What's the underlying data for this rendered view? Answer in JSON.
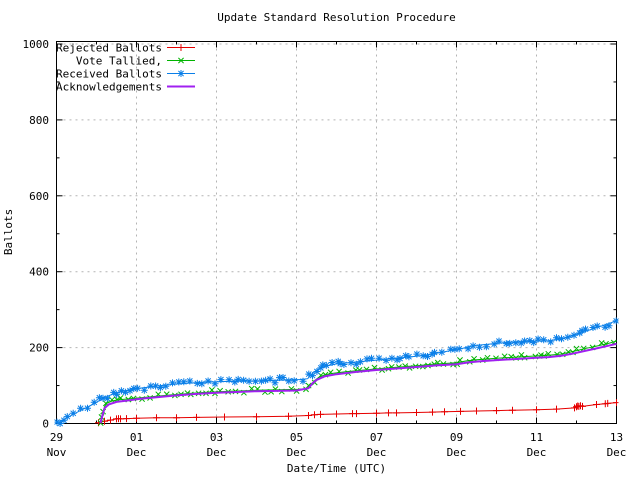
{
  "chart_data": {
    "type": "line",
    "title": "Update Standard Resolution Procedure",
    "xlabel": "Date/Time (UTC)",
    "ylabel": "Ballots",
    "x_unit": "days since 29 Nov 00:00 UTC",
    "xlim": [
      0,
      14
    ],
    "ylim": [
      0,
      1000
    ],
    "y_tick_step": 200,
    "y_minor_step": 100,
    "x_minor_step": 1,
    "grid": true,
    "grid_color": "#b4b4b4",
    "legend_position": "top-left",
    "x_ticks": [
      {
        "pos": 0,
        "label": "29",
        "sub": "Nov"
      },
      {
        "pos": 2,
        "label": "01",
        "sub": "Dec"
      },
      {
        "pos": 4,
        "label": "03",
        "sub": "Dec"
      },
      {
        "pos": 6,
        "label": "05",
        "sub": "Dec"
      },
      {
        "pos": 8,
        "label": "07",
        "sub": "Dec"
      },
      {
        "pos": 10,
        "label": "09",
        "sub": "Dec"
      },
      {
        "pos": 12,
        "label": "11",
        "sub": "Dec"
      },
      {
        "pos": 14,
        "label": "13",
        "sub": "Dec"
      }
    ],
    "series": [
      {
        "name": "Rejected Ballots",
        "color": "#e60000",
        "marker": "plus",
        "marker_mode": "points",
        "line_width": 1,
        "points": [
          [
            1.05,
            2
          ],
          [
            1.2,
            6
          ],
          [
            1.35,
            9
          ],
          [
            1.5,
            12
          ],
          [
            1.55,
            13
          ],
          [
            1.6,
            12
          ],
          [
            1.75,
            13
          ],
          [
            2.0,
            14
          ],
          [
            2.5,
            15
          ],
          [
            3.0,
            15
          ],
          [
            3.5,
            16
          ],
          [
            4.2,
            17
          ],
          [
            5.0,
            18
          ],
          [
            5.8,
            19
          ],
          [
            6.3,
            21
          ],
          [
            6.45,
            23
          ],
          [
            6.6,
            24
          ],
          [
            7.0,
            25
          ],
          [
            7.4,
            26
          ],
          [
            7.5,
            26
          ],
          [
            8.0,
            27
          ],
          [
            8.3,
            28
          ],
          [
            8.5,
            28
          ],
          [
            9.0,
            29
          ],
          [
            9.4,
            30
          ],
          [
            9.7,
            31
          ],
          [
            10.1,
            32
          ],
          [
            10.5,
            33
          ],
          [
            11.0,
            34
          ],
          [
            11.4,
            35
          ],
          [
            12.0,
            36
          ],
          [
            12.5,
            38
          ],
          [
            12.95,
            41
          ],
          [
            13.0,
            44
          ],
          [
            13.03,
            46
          ],
          [
            13.06,
            45
          ],
          [
            13.1,
            47
          ],
          [
            13.15,
            45
          ],
          [
            13.5,
            50
          ],
          [
            13.72,
            52
          ],
          [
            13.78,
            53
          ],
          [
            14.0,
            55
          ]
        ]
      },
      {
        "name": "Vote Tallied,",
        "color": "#00b400",
        "marker": "cross",
        "marker_mode": "dense",
        "line_width": 1,
        "points": [
          [
            1.08,
            1
          ],
          [
            1.12,
            14
          ],
          [
            1.16,
            30
          ],
          [
            1.2,
            44
          ],
          [
            1.25,
            53
          ],
          [
            1.35,
            58
          ],
          [
            1.5,
            62
          ],
          [
            1.7,
            64
          ],
          [
            1.9,
            66
          ],
          [
            2.1,
            68
          ],
          [
            2.5,
            72
          ],
          [
            2.9,
            76
          ],
          [
            3.3,
            79
          ],
          [
            3.7,
            82
          ],
          [
            4.1,
            84
          ],
          [
            4.6,
            86
          ],
          [
            5.1,
            88
          ],
          [
            5.6,
            89
          ],
          [
            6.05,
            90
          ],
          [
            6.28,
            92
          ],
          [
            6.35,
            102
          ],
          [
            6.45,
            113
          ],
          [
            6.55,
            121
          ],
          [
            6.7,
            128
          ],
          [
            6.9,
            132
          ],
          [
            7.2,
            136
          ],
          [
            7.6,
            140
          ],
          [
            8.0,
            144
          ],
          [
            8.5,
            148
          ],
          [
            9.0,
            152
          ],
          [
            9.4,
            156
          ],
          [
            9.7,
            158
          ],
          [
            10.0,
            160
          ],
          [
            10.25,
            165
          ],
          [
            10.5,
            168
          ],
          [
            11.0,
            172
          ],
          [
            11.5,
            175
          ],
          [
            12.0,
            178
          ],
          [
            12.3,
            180
          ],
          [
            12.6,
            183
          ],
          [
            12.8,
            187
          ],
          [
            13.0,
            192
          ],
          [
            13.2,
            197
          ],
          [
            13.5,
            204
          ],
          [
            13.8,
            211
          ],
          [
            14.0,
            217
          ]
        ]
      },
      {
        "name": "Received Ballots",
        "color": "#0a7fe8",
        "marker": "star",
        "marker_mode": "dense",
        "line_width": 1,
        "points": [
          [
            0,
            1
          ],
          [
            0.15,
            8
          ],
          [
            0.3,
            17
          ],
          [
            0.45,
            26
          ],
          [
            0.6,
            34
          ],
          [
            0.75,
            42
          ],
          [
            0.9,
            50
          ],
          [
            1.0,
            56
          ],
          [
            1.1,
            62
          ],
          [
            1.2,
            68
          ],
          [
            1.3,
            73
          ],
          [
            1.45,
            79
          ],
          [
            1.6,
            84
          ],
          [
            1.8,
            88
          ],
          [
            2.0,
            92
          ],
          [
            2.3,
            96
          ],
          [
            2.6,
            100
          ],
          [
            3.0,
            104
          ],
          [
            3.4,
            107
          ],
          [
            3.8,
            109
          ],
          [
            4.3,
            111
          ],
          [
            4.8,
            112
          ],
          [
            5.3,
            113
          ],
          [
            5.8,
            115
          ],
          [
            6.1,
            116
          ],
          [
            6.28,
            118
          ],
          [
            6.35,
            127
          ],
          [
            6.45,
            136
          ],
          [
            6.55,
            143
          ],
          [
            6.7,
            150
          ],
          [
            6.85,
            154
          ],
          [
            7.0,
            157
          ],
          [
            7.3,
            160
          ],
          [
            7.7,
            164
          ],
          [
            8.0,
            167
          ],
          [
            8.4,
            171
          ],
          [
            8.8,
            175
          ],
          [
            9.2,
            180
          ],
          [
            9.5,
            185
          ],
          [
            9.8,
            191
          ],
          [
            10.0,
            196
          ],
          [
            10.15,
            198
          ],
          [
            10.3,
            202
          ],
          [
            10.5,
            206
          ],
          [
            10.7,
            208
          ],
          [
            11.0,
            211
          ],
          [
            11.3,
            214
          ],
          [
            11.7,
            216
          ],
          [
            12.0,
            217
          ],
          [
            12.3,
            218
          ],
          [
            12.55,
            221
          ],
          [
            12.8,
            228
          ],
          [
            13.0,
            235
          ],
          [
            13.2,
            242
          ],
          [
            13.4,
            249
          ],
          [
            13.6,
            256
          ],
          [
            13.8,
            263
          ],
          [
            14.0,
            271
          ]
        ]
      },
      {
        "name": "Acknowledgements",
        "color": "#a020f0",
        "marker": "none",
        "marker_mode": "none",
        "line_width": 2,
        "points": [
          [
            1.1,
            1
          ],
          [
            1.15,
            22
          ],
          [
            1.2,
            40
          ],
          [
            1.3,
            50
          ],
          [
            1.5,
            57
          ],
          [
            1.8,
            61
          ],
          [
            2.1,
            65
          ],
          [
            2.5,
            69
          ],
          [
            3.0,
            74
          ],
          [
            3.5,
            78
          ],
          [
            4.0,
            81
          ],
          [
            4.5,
            83
          ],
          [
            5.0,
            85
          ],
          [
            5.5,
            86
          ],
          [
            6.0,
            87
          ],
          [
            6.3,
            93
          ],
          [
            6.4,
            106
          ],
          [
            6.5,
            115
          ],
          [
            6.7,
            124
          ],
          [
            7.0,
            130
          ],
          [
            7.5,
            136
          ],
          [
            8.0,
            141
          ],
          [
            8.5,
            145
          ],
          [
            9.0,
            149
          ],
          [
            9.5,
            153
          ],
          [
            10.0,
            156
          ],
          [
            10.3,
            161
          ],
          [
            10.6,
            164
          ],
          [
            11.0,
            167
          ],
          [
            11.5,
            170
          ],
          [
            12.0,
            173
          ],
          [
            12.3,
            175
          ],
          [
            12.6,
            178
          ],
          [
            12.9,
            184
          ],
          [
            13.2,
            191
          ],
          [
            13.5,
            198
          ],
          [
            13.8,
            205
          ],
          [
            14.0,
            210
          ]
        ]
      }
    ]
  }
}
